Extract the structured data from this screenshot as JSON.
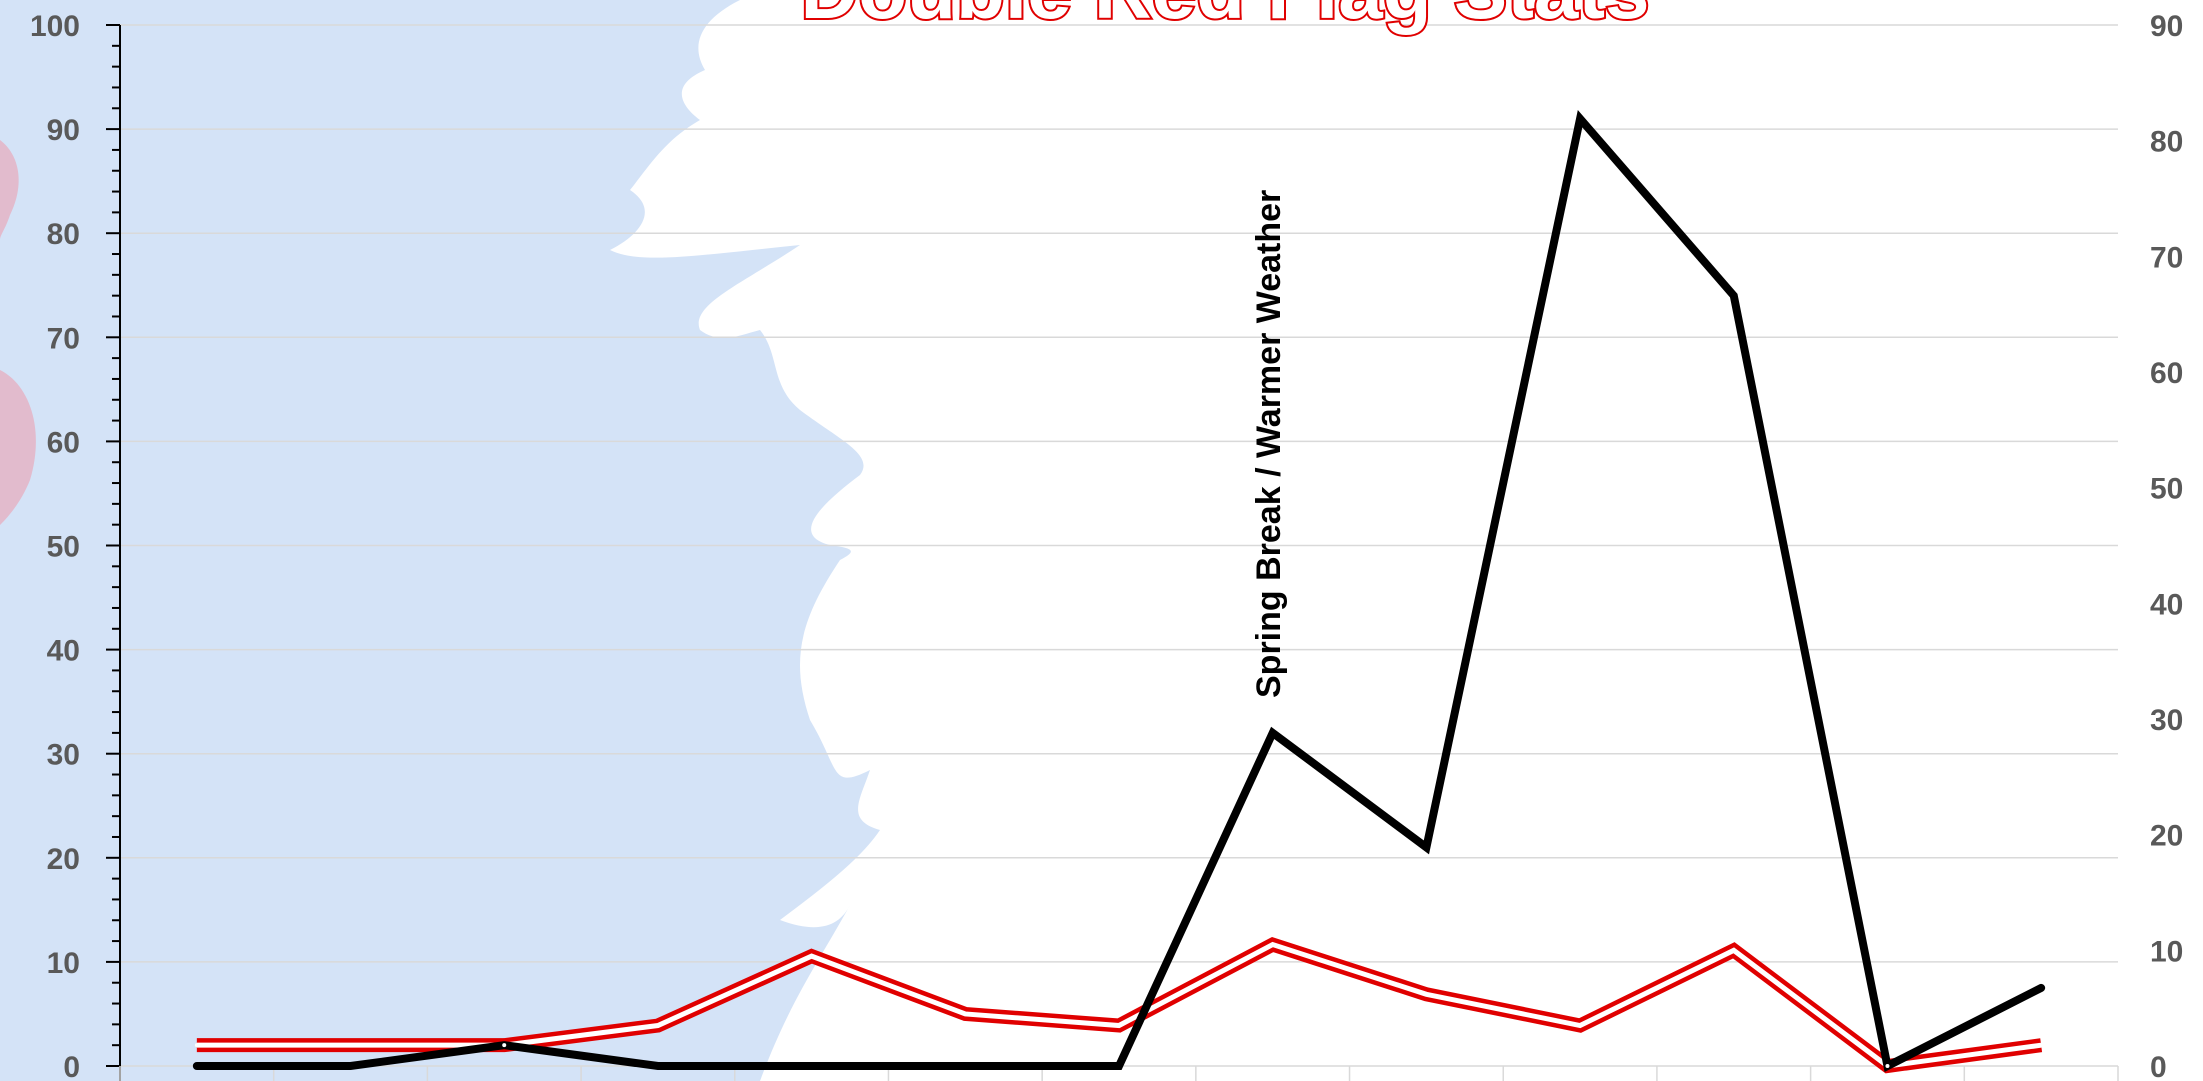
{
  "chart_data": {
    "type": "line",
    "title": "Double Red Flag Stats",
    "annotation": "Spring Break / Warmer Weather",
    "x_count": 13,
    "y_left": {
      "range": [
        0,
        100
      ],
      "ticks": [
        "0",
        "10",
        "20",
        "30",
        "40",
        "50",
        "60",
        "70",
        "80",
        "90",
        "100"
      ]
    },
    "y_right": {
      "range": [
        0,
        90
      ],
      "ticks": [
        "0",
        "10",
        "20",
        "30",
        "40",
        "50",
        "60",
        "70",
        "80",
        "90"
      ]
    },
    "series": [
      {
        "axis": "left",
        "color": "#000000",
        "values": [
          0,
          0,
          2,
          0,
          0,
          0,
          0,
          32,
          21,
          91,
          74,
          0,
          7.5
        ]
      },
      {
        "axis": "right",
        "color": "#e00000",
        "values": [
          1.8,
          1.8,
          1.8,
          3.5,
          9.5,
          4.5,
          3.5,
          10.5,
          6.2,
          3.5,
          10,
          0,
          1.8
        ]
      }
    ],
    "grid": true
  }
}
